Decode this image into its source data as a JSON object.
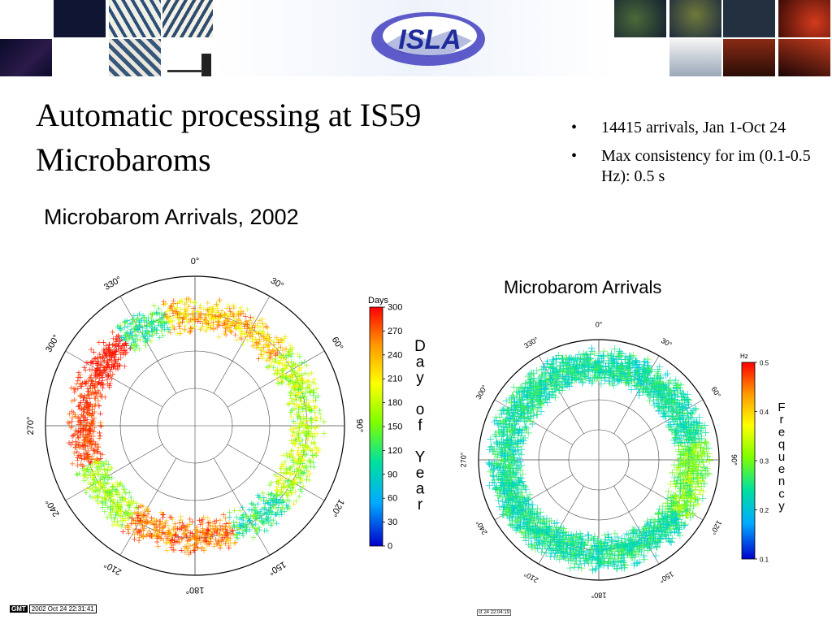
{
  "header": {
    "logo_text": "ISLA",
    "banner_icons": [
      "meteor-photo",
      "ocean-wave-art",
      "ocean-wave-art",
      "ocean-wave-art",
      "infrasound-sensor",
      "earth-satellite",
      "earth-satellite",
      "volcano-eruption",
      "storm-cloud",
      "volcano-eruption"
    ]
  },
  "title": {
    "line1": "Automatic processing at IS59",
    "line2": "Microbaroms"
  },
  "bullets": [
    "14415 arrivals, Jan 1-Oct 24",
    "Max consistency for im (0.1-0.5 Hz): 0.5 s"
  ],
  "figures": [
    {
      "title": "Microbarom Arrivals, 2002",
      "chart_data": {
        "type": "scatter",
        "coordinate_system": "polar",
        "angular_labels": [
          "0°",
          "30°",
          "60°",
          "90°",
          "120°",
          "150°",
          "180°",
          "210°",
          "240°",
          "270°",
          "300°",
          "330°"
        ],
        "colorbar": {
          "unit": "Days",
          "ticks": [
            0,
            30,
            60,
            90,
            120,
            150,
            180,
            210,
            240,
            270,
            300
          ],
          "range": [
            0,
            300
          ],
          "label_vertical": "Day of Year",
          "label_letters": [
            "D",
            "a",
            "y",
            "",
            "o",
            "f",
            "",
            "Y",
            "e",
            "a",
            "r"
          ]
        },
        "clusters": [
          {
            "azimuth_from": 320,
            "azimuth_to": 345,
            "color_value_range": [
              60,
              160
            ]
          },
          {
            "azimuth_from": 345,
            "azimuth_to": 50,
            "color_value_range": [
              180,
              280
            ]
          },
          {
            "azimuth_from": 50,
            "azimuth_to": 130,
            "color_value_range": [
              120,
              220
            ]
          },
          {
            "azimuth_from": 160,
            "azimuth_to": 215,
            "color_value_range": [
              220,
              300
            ]
          },
          {
            "azimuth_from": 215,
            "azimuth_to": 250,
            "color_value_range": [
              120,
              200
            ]
          },
          {
            "azimuth_from": 250,
            "azimuth_to": 295,
            "color_value_range": [
              260,
              300
            ]
          },
          {
            "azimuth_from": 295,
            "azimuth_to": 320,
            "color_value_range": [
              280,
              300
            ]
          }
        ],
        "colors": [
          "#0000cc",
          "#00bfff",
          "#00e0a0",
          "#80ff00",
          "#ffff00",
          "#ff9900",
          "#ff0000"
        ]
      },
      "stamp": {
        "gmt": "GMT",
        "text": "2002 Oct 24 22:31:41"
      }
    },
    {
      "title": "Microbarom Arrivals",
      "chart_data": {
        "type": "scatter",
        "coordinate_system": "polar",
        "angular_labels": [
          "0°",
          "30°",
          "60°",
          "90°",
          "120°",
          "150°",
          "180°",
          "210°",
          "240°",
          "270°",
          "300°",
          "330°"
        ],
        "colorbar": {
          "unit": "Hz",
          "ticks": [
            0.1,
            0.2,
            0.3,
            0.4,
            0.5
          ],
          "range": [
            0.1,
            0.5
          ],
          "label_vertical": "Frequency",
          "label_letters": [
            "F",
            "r",
            "e",
            "q",
            "u",
            "e",
            "n",
            "c",
            "y"
          ]
        },
        "clusters": [
          {
            "azimuth_from": 0,
            "azimuth_to": 360,
            "color_value_range": [
              0.18,
              0.28
            ]
          },
          {
            "azimuth_from": 80,
            "azimuth_to": 125,
            "color_value_range": [
              0.24,
              0.34
            ]
          }
        ],
        "colors": [
          "#0000cc",
          "#00bfff",
          "#00e0a0",
          "#80ff00",
          "#ffff00",
          "#ff9900",
          "#ff0000"
        ]
      },
      "stamp": {
        "text": "ct 24 22:04:19"
      }
    }
  ]
}
